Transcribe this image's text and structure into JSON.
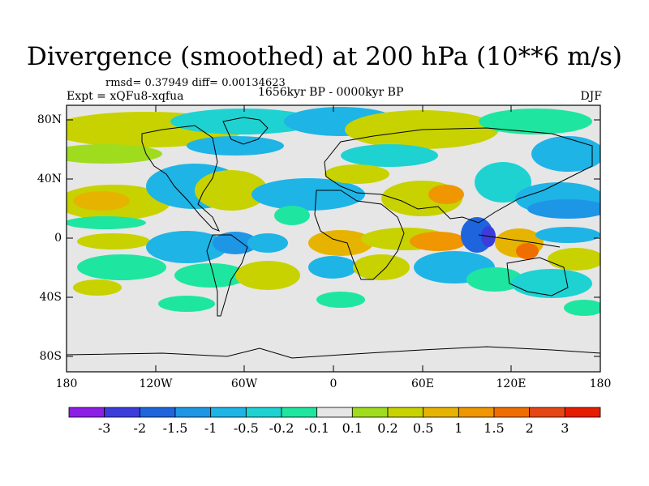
{
  "header": {
    "title": "Divergence (smoothed) at 200 hPa (10**6 m/s)",
    "stats": "rmsd= 0.37949 diff= 0.00134623",
    "experiment": "Expt = xQFu8-xqfua",
    "period": "1656kyr BP - 0000kyr BP",
    "season": "DJF"
  },
  "map": {
    "y_ticks": [
      "80N",
      "40N",
      "0",
      "40S",
      "80S"
    ],
    "x_ticks": [
      "180",
      "120W",
      "60W",
      "0",
      "60E",
      "120E",
      "180"
    ]
  },
  "colorbar": {
    "labels": [
      "-3",
      "-2",
      "-1.5",
      "-1",
      "-0.5",
      "-0.2",
      "-0.1",
      "0.1",
      "0.2",
      "0.5",
      "1",
      "1.5",
      "2",
      "3"
    ],
    "colors": [
      "#8c1ee6",
      "#3c3cdc",
      "#1e64dc",
      "#1e96e6",
      "#1eb4e6",
      "#1ed2d2",
      "#1ee6a0",
      "#e6e6e6",
      "#a0dc1e",
      "#c8d200",
      "#e6b400",
      "#f09600",
      "#f06e00",
      "#e64614",
      "#e61e00"
    ]
  }
}
